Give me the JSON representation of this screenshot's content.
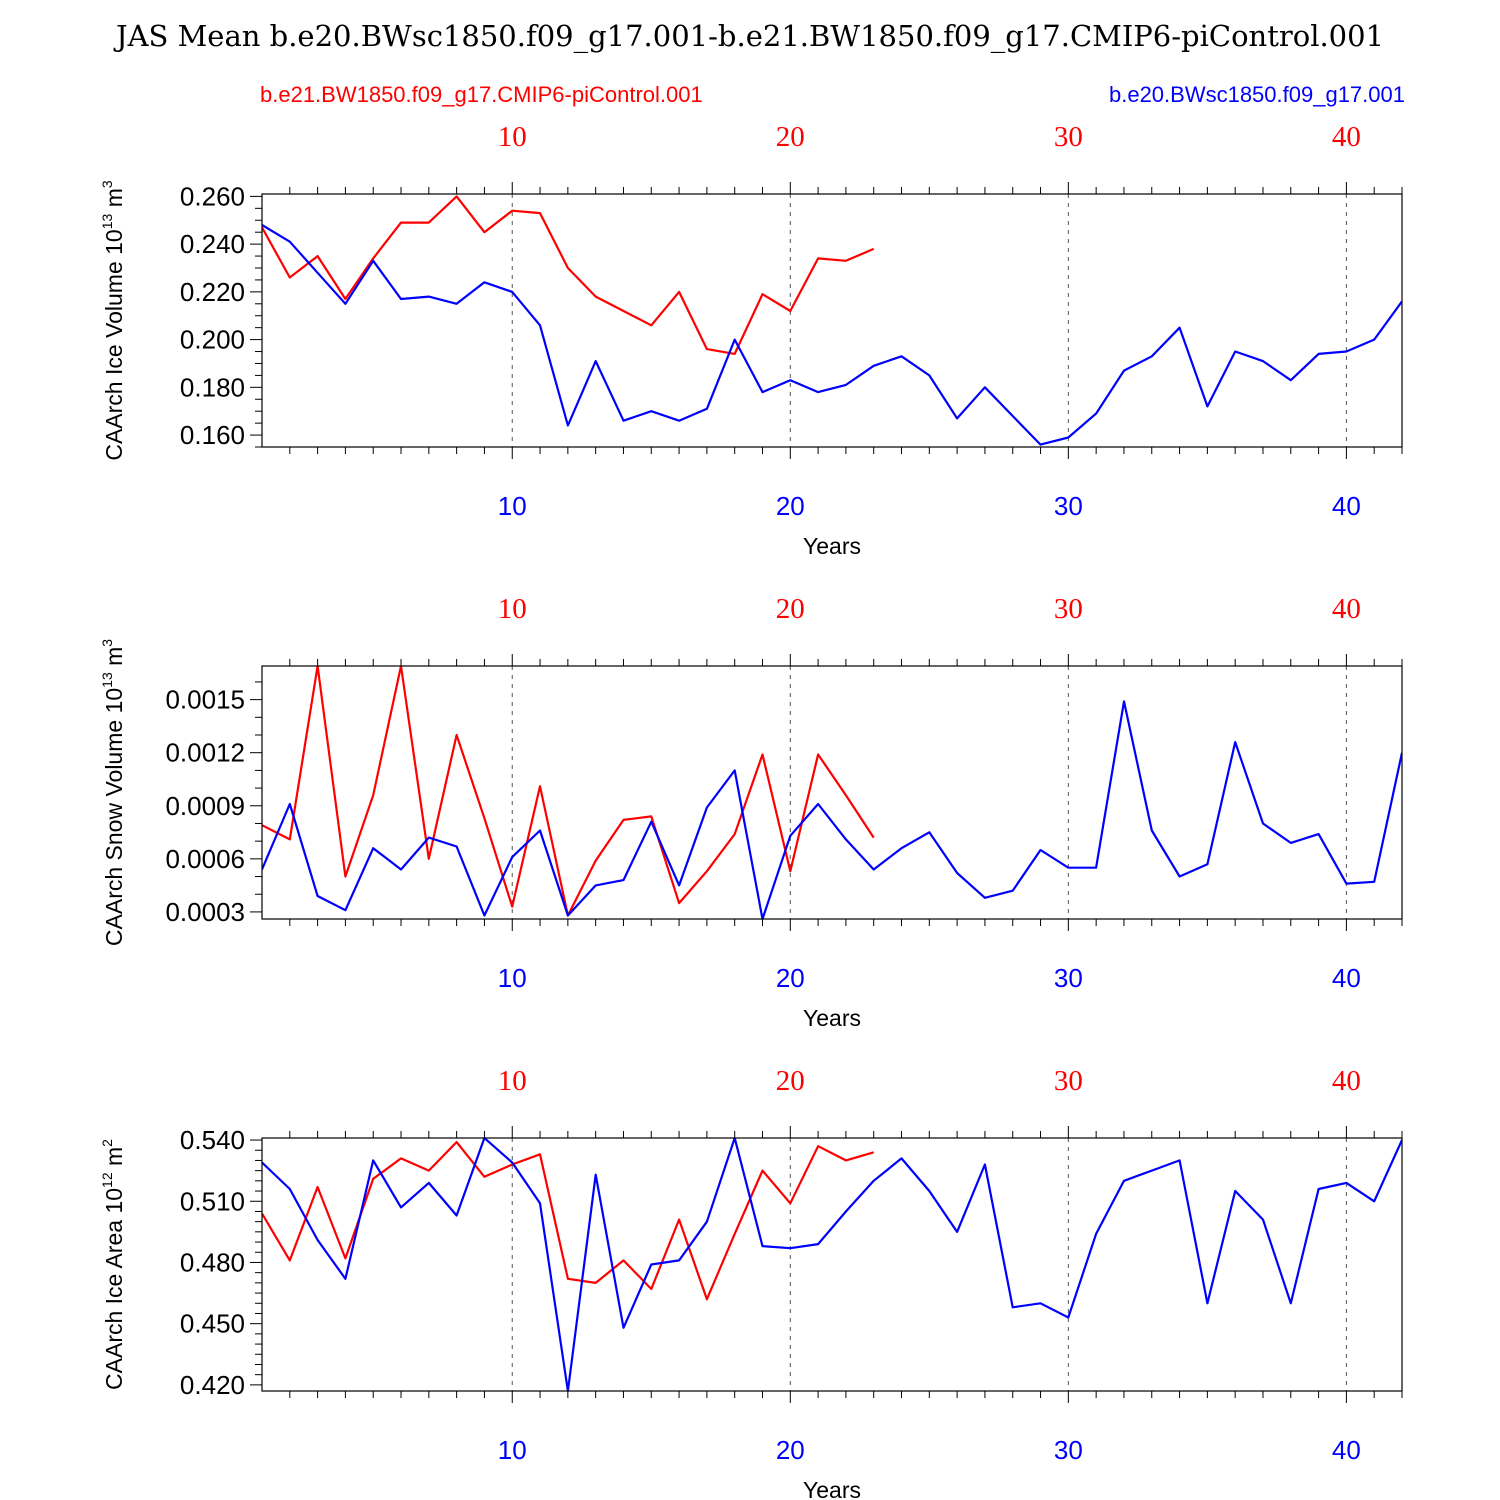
{
  "chart_data": {
    "title": "JAS Mean b.e20.BWsc1850.f09_g17.001-b.e21.BW1850.f09_g17.CMIP6-piControl.001",
    "legend_left": "b.e21.BW1850.f09_g17.CMIP6-piControl.001",
    "legend_right": "b.e20.BWsc1850.f09_g17.001",
    "colors": {
      "control": "#ff0000",
      "experiment": "#0000ff"
    },
    "panels": [
      {
        "type": "line",
        "ylabel": "CAArch Ice Volume 10",
        "ylabel_exp": "13",
        "ylabel_unit": " m",
        "ylabel_unit_exp": "3",
        "xlabel": "Years",
        "xlim": [
          1,
          42
        ],
        "ylim": [
          0.155,
          0.261
        ],
        "yticks": [
          "0.260",
          "0.240",
          "0.220",
          "0.200",
          "0.180",
          "0.160"
        ],
        "yticks_values": [
          0.26,
          0.24,
          0.22,
          0.2,
          0.18,
          0.16
        ],
        "ymin_step": 0.005,
        "xticks_top": [
          "10",
          "20",
          "30",
          "40"
        ],
        "xticks_bottom": [
          "10",
          "20",
          "30",
          "40"
        ],
        "series": [
          {
            "name": "b.e21.BW1850.f09_g17.CMIP6-piControl.001",
            "color": "#ff0000",
            "values": [
              0.247,
              0.226,
              0.235,
              0.217,
              0.234,
              0.249,
              0.249,
              0.26,
              0.245,
              0.254,
              0.253,
              0.23,
              0.218,
              0.212,
              0.206,
              0.22,
              0.196,
              0.194,
              0.219,
              0.212,
              0.234,
              0.233,
              0.238
            ]
          },
          {
            "name": "b.e20.BWsc1850.f09_g17.001",
            "color": "#0000ff",
            "values": [
              0.248,
              0.241,
              0.228,
              0.215,
              0.233,
              0.217,
              0.218,
              0.215,
              0.224,
              0.22,
              0.206,
              0.164,
              0.191,
              0.166,
              0.17,
              0.166,
              0.171,
              0.2,
              0.178,
              0.183,
              0.178,
              0.181,
              0.189,
              0.193,
              0.185,
              0.167,
              0.18,
              0.168,
              0.156,
              0.159,
              0.169,
              0.187,
              0.193,
              0.205,
              0.172,
              0.195,
              0.191,
              0.183,
              0.194,
              0.195,
              0.2,
              0.216
            ]
          }
        ]
      },
      {
        "type": "line",
        "ylabel": "CAArch Snow Volume 10",
        "ylabel_exp": "13",
        "ylabel_unit": " m",
        "ylabel_unit_exp": "3",
        "xlabel": "Years",
        "xlim": [
          1,
          42
        ],
        "ylim": [
          0.00026,
          0.00169
        ],
        "yticks": [
          "0.0015",
          "0.0012",
          "0.0009",
          "0.0006",
          "0.0003"
        ],
        "yticks_values": [
          0.0015,
          0.0012,
          0.0009,
          0.0006,
          0.0003
        ],
        "ymin_step": 0.0001,
        "xticks_top": [
          "10",
          "20",
          "30",
          "40"
        ],
        "xticks_bottom": [
          "10",
          "20",
          "30",
          "40"
        ],
        "series": [
          {
            "name": "b.e21.BW1850.f09_g17.CMIP6-piControl.001",
            "color": "#ff0000",
            "values": [
              0.00079,
              0.00071,
              0.00169,
              0.0005,
              0.00096,
              0.00169,
              0.0006,
              0.0013,
              0.00083,
              0.00033,
              0.00101,
              0.00028,
              0.00059,
              0.00082,
              0.00084,
              0.00035,
              0.00053,
              0.00074,
              0.00119,
              0.00053,
              0.00119,
              0.00096,
              0.00072
            ]
          },
          {
            "name": "b.e20.BWsc1850.f09_g17.001",
            "color": "#0000ff",
            "values": [
              0.00054,
              0.00091,
              0.00039,
              0.00031,
              0.00066,
              0.00054,
              0.00072,
              0.00067,
              0.00028,
              0.00061,
              0.00076,
              0.00028,
              0.00045,
              0.00048,
              0.00081,
              0.00045,
              0.00089,
              0.0011,
              0.00026,
              0.00073,
              0.00091,
              0.00071,
              0.00054,
              0.00066,
              0.00075,
              0.00052,
              0.00038,
              0.00042,
              0.00065,
              0.00055,
              0.00055,
              0.00149,
              0.00076,
              0.0005,
              0.00057,
              0.00126,
              0.0008,
              0.00069,
              0.00074,
              0.00046,
              0.00047,
              0.0012
            ]
          }
        ]
      },
      {
        "type": "line",
        "ylabel": "CAArch Ice Area 10",
        "ylabel_exp": "12",
        "ylabel_unit": " m",
        "ylabel_unit_exp": "2",
        "xlabel": "Years",
        "xlim": [
          1,
          42
        ],
        "ylim": [
          0.417,
          0.541
        ],
        "yticks": [
          "0.540",
          "0.510",
          "0.480",
          "0.450",
          "0.420"
        ],
        "yticks_values": [
          0.54,
          0.51,
          0.48,
          0.45,
          0.42
        ],
        "ymin_step": 0.005,
        "xticks_top": [
          "10",
          "20",
          "30",
          "40"
        ],
        "xticks_bottom": [
          "10",
          "20",
          "30",
          "40"
        ],
        "series": [
          {
            "name": "b.e21.BW1850.f09_g17.CMIP6-piControl.001",
            "color": "#ff0000",
            "values": [
              0.504,
              0.481,
              0.517,
              0.482,
              0.521,
              0.531,
              0.525,
              0.539,
              0.522,
              0.528,
              0.533,
              0.472,
              0.47,
              0.481,
              0.467,
              0.501,
              0.462,
              0.494,
              0.525,
              0.509,
              0.537,
              0.53,
              0.534
            ]
          },
          {
            "name": "b.e20.BWsc1850.f09_g17.001",
            "color": "#0000ff",
            "values": [
              0.529,
              0.516,
              0.491,
              0.472,
              0.53,
              0.507,
              0.519,
              0.503,
              0.541,
              0.529,
              0.509,
              0.417,
              0.523,
              0.448,
              0.479,
              0.481,
              0.5,
              0.541,
              0.488,
              0.487,
              0.489,
              0.505,
              0.52,
              0.531,
              0.515,
              0.495,
              0.528,
              0.458,
              0.46,
              0.453,
              0.494,
              0.52,
              0.525,
              0.53,
              0.46,
              0.515,
              0.501,
              0.46,
              0.516,
              0.519,
              0.51,
              0.54
            ]
          }
        ]
      }
    ]
  }
}
